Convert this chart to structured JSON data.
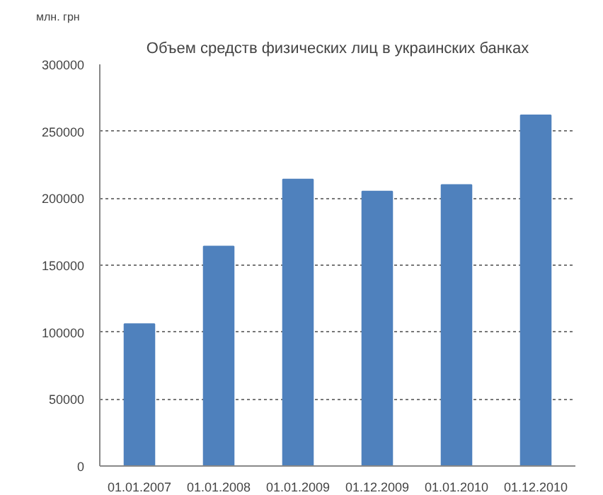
{
  "chart_data": {
    "type": "bar",
    "title": "Объем средств физических лиц в украинских банках",
    "ylabel": "млн. грн",
    "categories": [
      "01.01.2007",
      "01.01.2008",
      "01.01.2009",
      "01.12.2009",
      "01.01.2010",
      "01.12.2010"
    ],
    "values": [
      106000,
      164000,
      214000,
      205000,
      210000,
      262000
    ],
    "color": "#4f81bd",
    "ylim": [
      0,
      300000
    ],
    "yticks": [
      0,
      50000,
      100000,
      150000,
      200000,
      250000,
      300000
    ],
    "grid": "y"
  }
}
